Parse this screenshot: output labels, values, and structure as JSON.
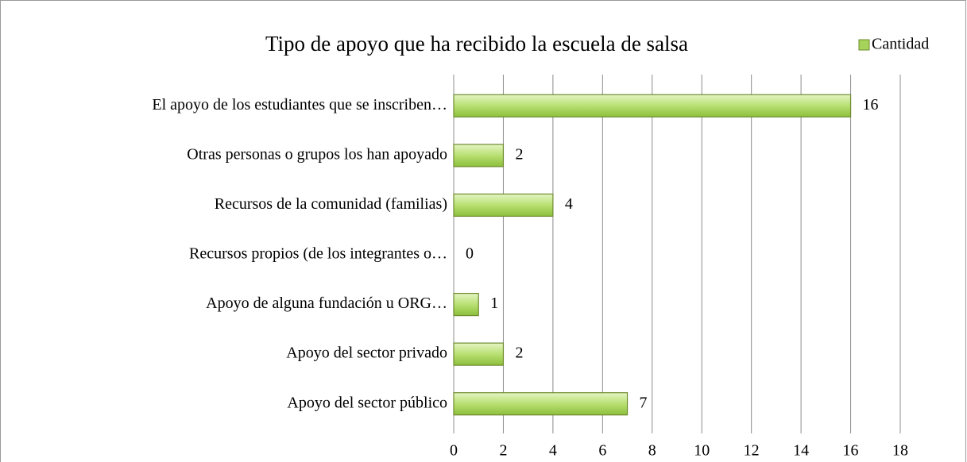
{
  "chart_data": {
    "type": "hbar",
    "title": "Tipo de apoyo que ha recibido la escuela de salsa",
    "categories": [
      "El apoyo de los estudiantes que se inscriben…",
      "Otras personas o grupos los han apoyado",
      "Recursos de la comunidad (familias)",
      "Recursos propios (de los integrantes o…",
      "Apoyo de alguna fundación u ORG…",
      "Apoyo del sector privado",
      "Apoyo del sector público"
    ],
    "series": [
      {
        "name": "Cantidad",
        "color": "#a6d45a",
        "values": [
          16,
          2,
          4,
          0,
          1,
          2,
          7
        ]
      }
    ],
    "xlim": [
      0,
      18
    ],
    "xticks": [
      0,
      2,
      4,
      6,
      8,
      10,
      12,
      14,
      16,
      18
    ],
    "grid": true,
    "legend": "top-right"
  }
}
